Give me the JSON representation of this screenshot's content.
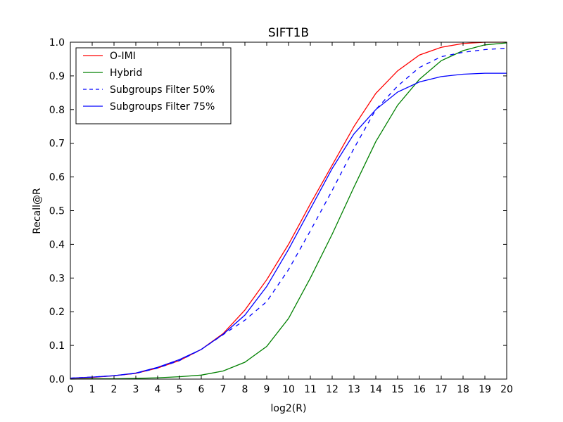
{
  "chart_data": {
    "type": "line",
    "title": "SIFT1B",
    "xlabel": "log2(R)",
    "ylabel": "Recall@R",
    "xlim": [
      0,
      20
    ],
    "ylim": [
      0,
      1.0
    ],
    "x_ticks": [
      "0",
      "1",
      "2",
      "3",
      "4",
      "5",
      "6",
      "7",
      "8",
      "9",
      "10",
      "11",
      "12",
      "13",
      "14",
      "15",
      "16",
      "17",
      "18",
      "19",
      "20"
    ],
    "y_ticks": [
      "0.0",
      "0.1",
      "0.2",
      "0.3",
      "0.4",
      "0.5",
      "0.6",
      "0.7",
      "0.8",
      "0.9",
      "1.0"
    ],
    "grid": false,
    "legend_position": "top-left",
    "x": [
      0,
      1,
      2,
      3,
      4,
      5,
      6,
      7,
      8,
      9,
      10,
      11,
      12,
      13,
      14,
      15,
      16,
      17,
      18,
      19,
      20
    ],
    "series": [
      {
        "name": "O-IMI",
        "color": "#ff0000",
        "dash": "solid",
        "values": [
          0.002,
          0.005,
          0.01,
          0.017,
          0.033,
          0.055,
          0.088,
          0.135,
          0.205,
          0.295,
          0.4,
          0.52,
          0.635,
          0.75,
          0.848,
          0.915,
          0.962,
          0.985,
          0.996,
          1.0,
          1.0
        ]
      },
      {
        "name": "Hybrid",
        "color": "#008000",
        "dash": "solid",
        "values": [
          0.0,
          0.001,
          0.001,
          0.002,
          0.004,
          0.007,
          0.012,
          0.024,
          0.05,
          0.097,
          0.18,
          0.3,
          0.43,
          0.57,
          0.705,
          0.813,
          0.89,
          0.945,
          0.975,
          0.992,
          0.998
        ]
      },
      {
        "name": "Subgroups Filter 50%",
        "color": "#0000ff",
        "dash": "dashed",
        "values": [
          0.003,
          0.006,
          0.01,
          0.017,
          0.033,
          0.055,
          0.088,
          0.132,
          0.175,
          0.23,
          0.325,
          0.44,
          0.56,
          0.685,
          0.8,
          0.87,
          0.925,
          0.957,
          0.97,
          0.978,
          0.982
        ]
      },
      {
        "name": "Subgroups Filter 75%",
        "color": "#0000ff",
        "dash": "solid",
        "values": [
          0.003,
          0.006,
          0.01,
          0.018,
          0.035,
          0.058,
          0.088,
          0.133,
          0.19,
          0.275,
          0.385,
          0.505,
          0.625,
          0.728,
          0.8,
          0.852,
          0.882,
          0.898,
          0.905,
          0.908,
          0.908
        ]
      }
    ]
  }
}
